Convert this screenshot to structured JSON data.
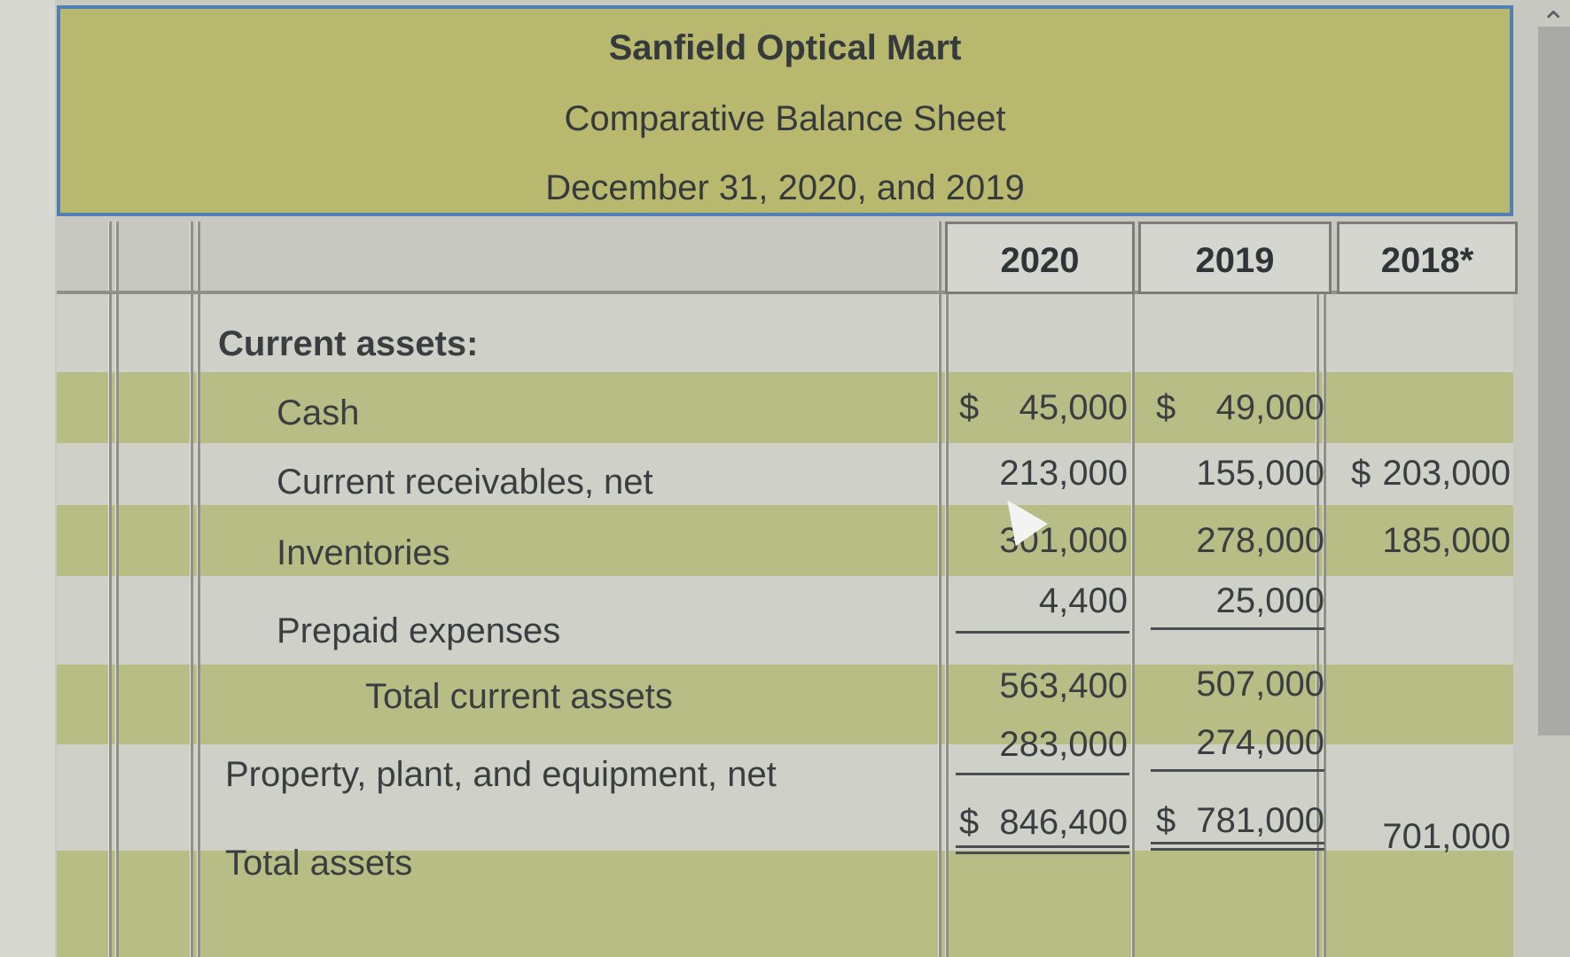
{
  "header": {
    "company": "Sanfield Optical Mart",
    "title": "Comparative Balance Sheet",
    "date": "December 31, 2020, and 2019"
  },
  "columns": [
    "2020",
    "2019",
    "2018*"
  ],
  "section_label": "Current assets:",
  "rows": [
    {
      "label": "Cash",
      "c2020_sym": "$",
      "c2020": "45,000",
      "c2019_sym": "$",
      "c2019": "49,000",
      "c2018_sym": "",
      "c2018": ""
    },
    {
      "label": "Current receivables, net",
      "c2020_sym": "",
      "c2020": "213,000",
      "c2019_sym": "",
      "c2019": "155,000",
      "c2018_sym": "$",
      "c2018": "203,000"
    },
    {
      "label": "Inventories",
      "c2020_sym": "",
      "c2020": "301,000",
      "c2019_sym": "",
      "c2019": "278,000",
      "c2018_sym": "",
      "c2018": "185,000"
    },
    {
      "label": "Prepaid expenses",
      "c2020_sym": "",
      "c2020": "4,400",
      "c2019_sym": "",
      "c2019": "25,000",
      "c2018_sym": "",
      "c2018": ""
    },
    {
      "label": "Total current assets",
      "c2020_sym": "",
      "c2020": "563,400",
      "c2019_sym": "",
      "c2019": "507,000",
      "c2018_sym": "",
      "c2018": ""
    },
    {
      "label": "Property, plant, and equipment, net",
      "c2020_sym": "",
      "c2020": "283,000",
      "c2019_sym": "",
      "c2019": "274,000",
      "c2018_sym": "",
      "c2018": ""
    },
    {
      "label": "Total assets",
      "c2020_sym": "$",
      "c2020": "846,400",
      "c2019_sym": "$",
      "c2019": "781,000",
      "c2018_sym": "",
      "c2018": "701,000"
    }
  ]
}
